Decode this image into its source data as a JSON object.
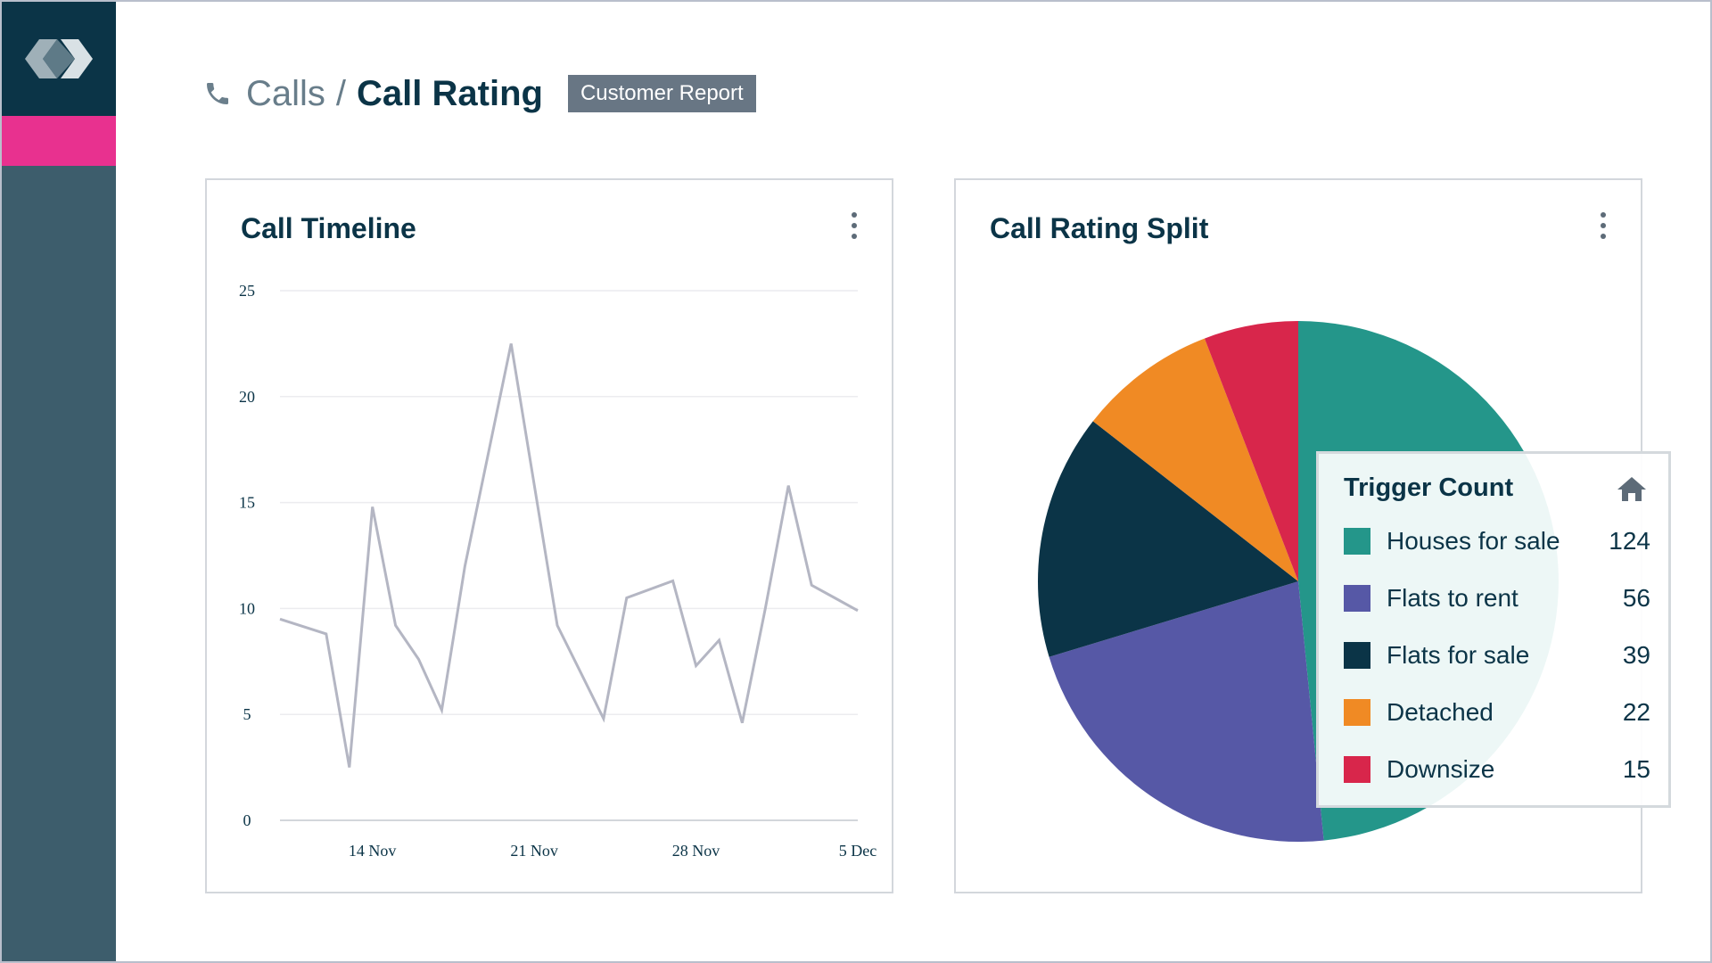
{
  "header": {
    "breadcrumb_parent": "Calls",
    "breadcrumb_separator": "/",
    "breadcrumb_current": "Call Rating",
    "badge": "Customer Report",
    "icon": "phone-icon"
  },
  "sidebar": {
    "logo_icon": "logo-icon",
    "active_color": "#e8318f",
    "bg_color": "#3d5d6c",
    "logo_bg": "#0b3447"
  },
  "timeline_card": {
    "title": "Call Timeline",
    "menu_icon": "kebab-menu-icon"
  },
  "split_card": {
    "title": "Call Rating Split",
    "menu_icon": "kebab-menu-icon"
  },
  "legend": {
    "title": "Trigger Count",
    "icon": "house-icon",
    "items": [
      {
        "label": "Houses for sale",
        "value": "124",
        "color": "#24968a"
      },
      {
        "label": "Flats to rent",
        "value": "56",
        "color": "#5658a6"
      },
      {
        "label": "Flats for sale",
        "value": "39",
        "color": "#0b3447"
      },
      {
        "label": "Detached",
        "value": "22",
        "color": "#f08a24"
      },
      {
        "label": "Downsize",
        "value": "15",
        "color": "#d8264b"
      }
    ]
  },
  "chart_data": [
    {
      "type": "line",
      "title": "Call Timeline",
      "xlabel": "",
      "ylabel": "",
      "ylim": [
        0,
        25
      ],
      "yticks": [
        0,
        5,
        10,
        15,
        20,
        25
      ],
      "xlim": [
        "2023-11-10",
        "2023-12-05"
      ],
      "xticks": [
        {
          "date": "2023-11-14",
          "label": "14 Nov"
        },
        {
          "date": "2023-11-21",
          "label": "21 Nov"
        },
        {
          "date": "2023-11-28",
          "label": "28 Nov"
        },
        {
          "date": "2023-12-05",
          "label": "5 Dec"
        }
      ],
      "grid": true,
      "line_color": "#b4b6c3",
      "series": [
        {
          "x": [
            "2023-11-10",
            "2023-11-12",
            "2023-11-13",
            "2023-11-14",
            "2023-11-15",
            "2023-11-16",
            "2023-11-17",
            "2023-11-18",
            "2023-11-20",
            "2023-11-22",
            "2023-11-23",
            "2023-11-24",
            "2023-11-25",
            "2023-11-27",
            "2023-11-28",
            "2023-11-29",
            "2023-11-30",
            "2023-12-01",
            "2023-12-02",
            "2023-12-03",
            "2023-12-04",
            "2023-12-05"
          ],
          "y": [
            9.5,
            8.8,
            2.5,
            14.8,
            9.2,
            7.6,
            5.2,
            12.0,
            22.5,
            9.2,
            7.0,
            4.8,
            10.5,
            11.3,
            7.3,
            8.5,
            4.6,
            10.0,
            15.8,
            11.1,
            10.5,
            9.9
          ]
        }
      ]
    },
    {
      "type": "pie",
      "title": "Call Rating Split",
      "legend": "right",
      "categories": [
        "Houses for sale",
        "Flats to rent",
        "Flats for sale",
        "Detached",
        "Downsize"
      ],
      "values": [
        124,
        56,
        39,
        22,
        15
      ],
      "colors": [
        "#24968a",
        "#5658a6",
        "#0b3447",
        "#f08a24",
        "#d8264b"
      ]
    }
  ]
}
